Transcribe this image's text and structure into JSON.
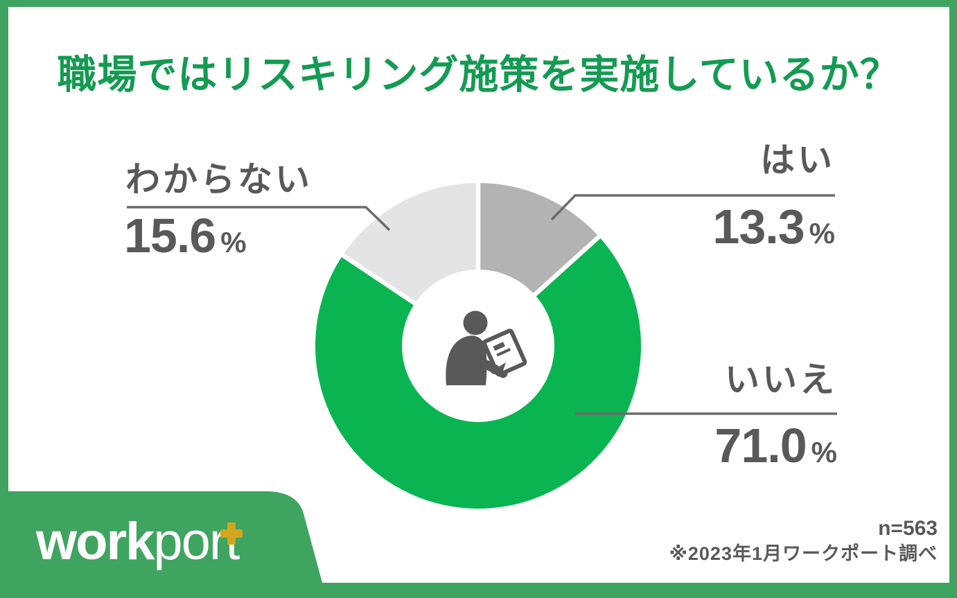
{
  "chart_data": {
    "type": "pie",
    "subtype": "donut",
    "title": "職場ではリスキリング施策を実施しているか？",
    "unit": "%",
    "start_angle_deg": 0,
    "direction": "clockwise",
    "segments": [
      {
        "label": "はい",
        "value": "13.3",
        "color": "#b3b3b3"
      },
      {
        "label": "いいえ",
        "value": "71.0",
        "color": "#0ab551"
      },
      {
        "label": "わからない",
        "value": "15.6",
        "color": "#e4e4e4"
      }
    ],
    "center_icon": "person-writing-icon",
    "sample_size": "n=563",
    "legend_position": "callout-labels"
  },
  "footer": {
    "note": "※2023年1月ワークポート調べ",
    "logo": {
      "bold": "work",
      "light": "por",
      "last": "t"
    }
  },
  "colors": {
    "frame_green": "#3fa45f",
    "title_green": "#149b52",
    "pie_green": "#0ab551",
    "gray_medium": "#b3b3b3",
    "gray_light": "#e4e4e4",
    "text_dark": "#595959",
    "leader_line": "#6b6b6b",
    "plus_gold": "#d4a51e"
  }
}
